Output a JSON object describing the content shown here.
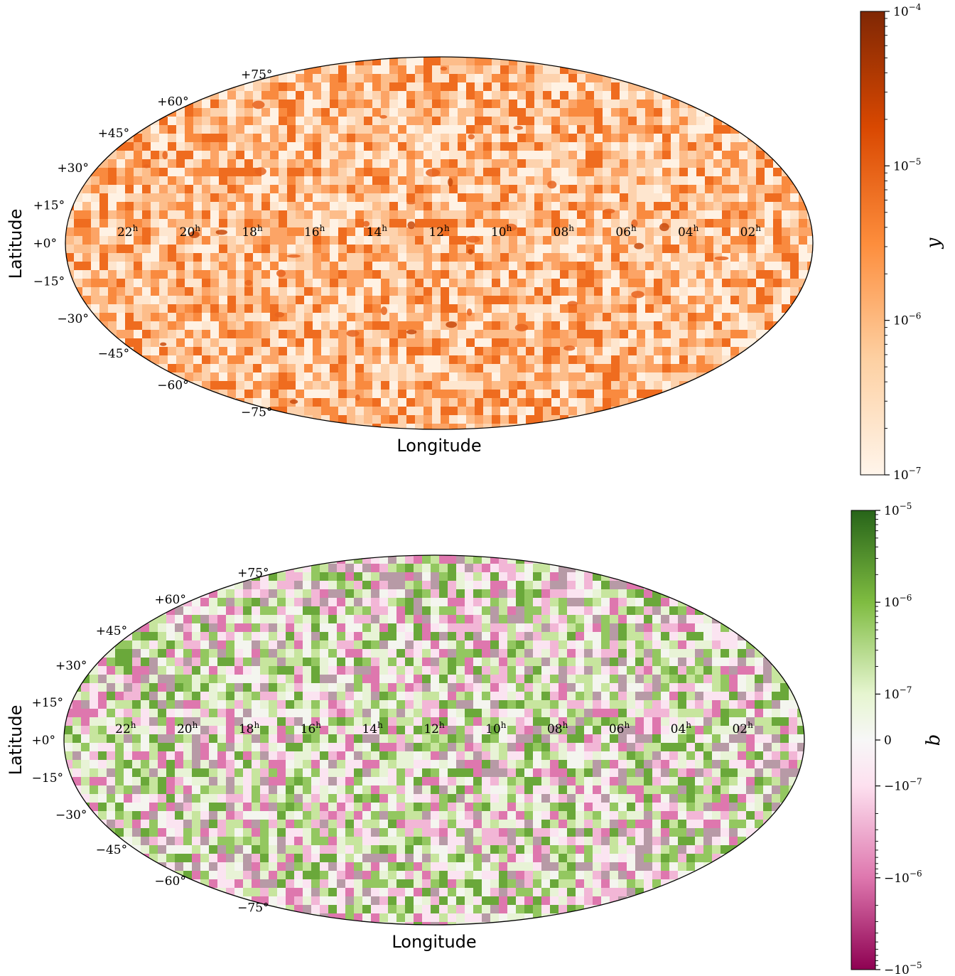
{
  "chart_data": [
    {
      "type": "heatmap",
      "projection": "mollweide",
      "xlabel": "Longitude",
      "ylabel": "Latitude",
      "lon_tick_labels": [
        "22",
        "20",
        "18",
        "16",
        "14",
        "12",
        "10",
        "08",
        "06",
        "04",
        "02"
      ],
      "lon_tick_unit": "h",
      "lat_tick_labels": [
        "+75°",
        "+60°",
        "+45°",
        "+30°",
        "+15°",
        "+0°",
        "−15°",
        "−30°",
        "−45°",
        "−60°",
        "−75°"
      ],
      "lat_ticks": [
        75,
        60,
        45,
        30,
        15,
        0,
        -15,
        -30,
        -45,
        -60,
        -75
      ],
      "grid": false,
      "colorbar": {
        "label": "y",
        "scale": "log",
        "range": [
          1e-07,
          0.0001
        ],
        "tick_values": [
          0.0001,
          1e-05,
          1e-06,
          1e-07
        ],
        "tick_labels": [
          {
            "base": "10",
            "exp": "−4"
          },
          {
            "base": "10",
            "exp": "−5"
          },
          {
            "base": "10",
            "exp": "−6"
          },
          {
            "base": "10",
            "exp": "−7"
          }
        ],
        "colors": [
          "#fff5eb",
          "#fdd0a2",
          "#fd8d3c",
          "#d94801",
          "#7f2704"
        ]
      }
    },
    {
      "type": "heatmap",
      "projection": "mollweide",
      "xlabel": "Longitude",
      "ylabel": "Latitude",
      "lon_tick_labels": [
        "22",
        "20",
        "18",
        "16",
        "14",
        "12",
        "10",
        "08",
        "06",
        "04",
        "02"
      ],
      "lon_tick_unit": "h",
      "lat_tick_labels": [
        "+75°",
        "+60°",
        "+45°",
        "+30°",
        "+15°",
        "+0°",
        "−15°",
        "−30°",
        "−45°",
        "−60°",
        "−75°"
      ],
      "lat_ticks": [
        75,
        60,
        45,
        30,
        15,
        0,
        -15,
        -30,
        -45,
        -60,
        -75
      ],
      "grid": false,
      "colorbar": {
        "label": "b",
        "scale": "symlog",
        "range": [
          -1e-05,
          1e-05
        ],
        "tick_values": [
          1e-05,
          1e-06,
          1e-07,
          0,
          -1e-07,
          -1e-06,
          -1e-05
        ],
        "tick_labels": [
          {
            "base": "10",
            "exp": "−5"
          },
          {
            "base": "10",
            "exp": "−6"
          },
          {
            "base": "10",
            "exp": "−7"
          },
          {
            "base": "0",
            "exp": ""
          },
          {
            "base": "−10",
            "exp": "−7"
          },
          {
            "base": "−10",
            "exp": "−6"
          },
          {
            "base": "−10",
            "exp": "−5"
          }
        ],
        "colors": [
          "#8e0152",
          "#de77ae",
          "#fde0ef",
          "#f7f7f7",
          "#e6f5d0",
          "#7fbc41",
          "#276419"
        ]
      }
    }
  ]
}
